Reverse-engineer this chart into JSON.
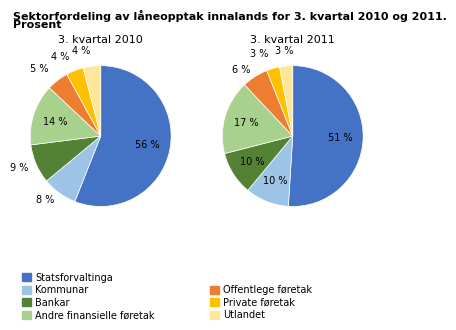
{
  "title_line1": "Sektorfordeling av låneopptak innalands for 3. kvartal 2010 og 2011.",
  "title_line2": "Prosent",
  "chart1_title": "3. kvartal 2010",
  "chart2_title": "3. kvartal 2011",
  "categories": [
    "Statsforvaltinga",
    "Kommunar",
    "Bankar",
    "Andre finansielle føretak",
    "Offentlege føretak",
    "Private føretak",
    "Utlandet"
  ],
  "colors": [
    "#4472C4",
    "#9DC3E6",
    "#548235",
    "#A9D18E",
    "#ED7D31",
    "#FFC000",
    "#FFE699"
  ],
  "values_2010": [
    56,
    8,
    9,
    14,
    5,
    4,
    4
  ],
  "values_2011": [
    51,
    10,
    10,
    17,
    6,
    3,
    3
  ],
  "labels_2010": [
    "56 %",
    "8 %",
    "9 %",
    "14 %",
    "5 %",
    "4 %",
    "4 %"
  ],
  "labels_2011": [
    "51 %",
    "10 %",
    "10 %",
    "17 %",
    "6 %",
    "3 %",
    "3 %"
  ],
  "startangle": 90,
  "bg_color": "#ffffff",
  "title_fontsize": 8,
  "label_fontsize": 7,
  "legend_fontsize": 7,
  "subtitle_fontsize": 8
}
